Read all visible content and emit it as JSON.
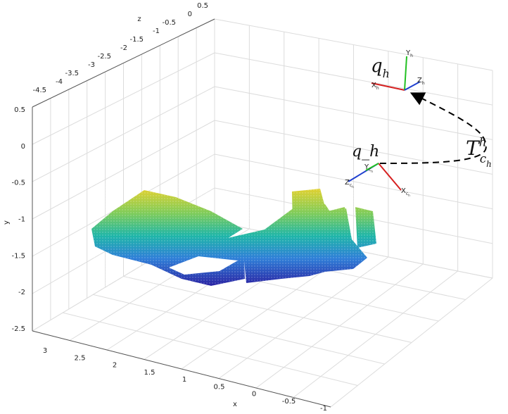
{
  "axes": {
    "x": {
      "label": "x",
      "ticks": [
        3,
        2.5,
        2,
        1.5,
        1,
        0.5,
        0,
        -0.5,
        -1
      ]
    },
    "y": {
      "label": "y",
      "ticks": [
        0.5,
        0,
        -0.5,
        -1,
        -1.5,
        -2,
        -2.5
      ]
    },
    "z": {
      "label": "z",
      "ticks": [
        -4.5,
        -4,
        -3.5,
        -3,
        -2.5,
        -2,
        -1.5,
        -1,
        -0.5,
        0,
        0.5
      ]
    }
  },
  "annotations": {
    "target_pose": {
      "base": "q",
      "sub": "h"
    },
    "camera_pose": "q_h",
    "transform": {
      "base": "T",
      "sup": "h",
      "sub": "c",
      "subsub": "h"
    }
  },
  "frames": {
    "head": {
      "y": {
        "base": "Y",
        "sub": "h"
      },
      "z": {
        "base": "Z",
        "sub": "h"
      },
      "x": {
        "base": "X",
        "sub": "h"
      }
    },
    "camera": {
      "y": {
        "base": "Y",
        "sub": "c",
        "subsub": "h"
      },
      "z": {
        "base": "Z",
        "sub": "c",
        "subsub": "h"
      },
      "x": {
        "base": "X",
        "sub": "c",
        "subsub": "h"
      }
    }
  }
}
